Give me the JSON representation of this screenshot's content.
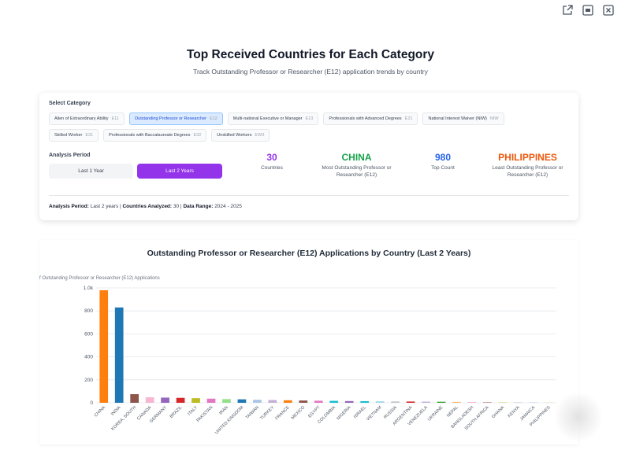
{
  "window_icons": [
    "external-link-icon",
    "minimize-icon",
    "close-icon"
  ],
  "header": {
    "title": "Top Received Countries for Each Category",
    "subtitle": "Track Outstanding Professor or Researcher (E12) application trends by country"
  },
  "filters": {
    "category_label": "Select Category",
    "categories": [
      {
        "name": "Alien of Extraordinary Ability",
        "code": "E11",
        "active": false
      },
      {
        "name": "Outstanding Professor or Researcher",
        "code": "E12",
        "active": true
      },
      {
        "name": "Multi-national Executive or Manager",
        "code": "E13",
        "active": false
      },
      {
        "name": "Professionals with Advanced Degrees",
        "code": "E21",
        "active": false
      },
      {
        "name": "National Interest Waiver (NIW)",
        "code": "NIW",
        "active": false
      },
      {
        "name": "Skilled Worker",
        "code": "E31",
        "active": false
      },
      {
        "name": "Professionals with Baccalaureate Degrees",
        "code": "E32",
        "active": false
      },
      {
        "name": "Unskilled Workers",
        "code": "EW3",
        "active": false
      }
    ],
    "period_label": "Analysis Period",
    "periods": [
      {
        "label": "Last 1 Year",
        "active": false
      },
      {
        "label": "Last 2 Years",
        "active": true
      }
    ]
  },
  "stats": [
    {
      "value": "30",
      "label": "Countries",
      "color": "#9333ea"
    },
    {
      "value": "CHINA",
      "label": "Most Outstanding Professor or Researcher (E12)",
      "color": "#16a34a"
    },
    {
      "value": "980",
      "label": "Top Count",
      "color": "#2563eb"
    },
    {
      "value": "PHILIPPINES",
      "label": "Least Outstanding Professor or Researcher (E12)",
      "color": "#ea580c"
    }
  ],
  "summary": {
    "period_key": "Analysis Period:",
    "period_val": "Last 2 years |",
    "countries_key": "Countries Analyzed:",
    "countries_val": "30 |",
    "range_key": "Data Range:",
    "range_val": "2024 - 2025"
  },
  "chart_data": {
    "type": "bar",
    "title": "Outstanding Professor or Researcher (E12) Applications by Country (Last 2 Years)",
    "ylabel": "f Outstanding Professor or Researcher (E12) Applications",
    "xlabel": "",
    "ylim": [
      0,
      1000
    ],
    "yticks": [
      0,
      200,
      400,
      600,
      800,
      1000
    ],
    "ytick_labels": [
      "0",
      "200",
      "400",
      "600",
      "800",
      "1.0k"
    ],
    "grid": true,
    "categories": [
      "CHINA",
      "INDIA",
      "KOREA, SOUTH",
      "CANADA",
      "GERMANY",
      "BRAZIL",
      "ITALY",
      "PAKISTAN",
      "IRAN",
      "UNITED KINGDOM",
      "TAIWAN",
      "TURKEY",
      "FRANCE",
      "MEXICO",
      "EGYPT",
      "COLOMBIA",
      "NIGERIA",
      "ISRAEL",
      "VIETNAM",
      "RUSSIA",
      "ARGENTINA",
      "VENEZUELA",
      "UKRAINE",
      "NEPAL",
      "BANGLADESH",
      "SOUTH AFRICA",
      "GHANA",
      "KENYA",
      "JAMAICA",
      "PHILIPPINES"
    ],
    "values": [
      980,
      830,
      75,
      48,
      45,
      43,
      40,
      36,
      32,
      30,
      27,
      24,
      22,
      20,
      18,
      17,
      15,
      14,
      13,
      12,
      11,
      10,
      9,
      8,
      7,
      6,
      5,
      4,
      3,
      2
    ],
    "colors": [
      "#ff7f0e",
      "#1f77b4",
      "#8c564b",
      "#f7b6d2",
      "#9467bd",
      "#d62728",
      "#bcbd22",
      "#e377c2",
      "#98df8a",
      "#1f77b4",
      "#aec7e8",
      "#c5b0d5",
      "#ff7f0e",
      "#8c564b",
      "#e377c2",
      "#17becf",
      "#9467bd",
      "#17becf",
      "#9edae5",
      "#c7c7c7",
      "#d62728",
      "#c5b0d5",
      "#2ca02c",
      "#ffbb78",
      "#f7b6d2",
      "#c49c94",
      "#dbdb8d",
      "#c7c7c7",
      "#aec7e8",
      "#dbdb8d"
    ]
  }
}
